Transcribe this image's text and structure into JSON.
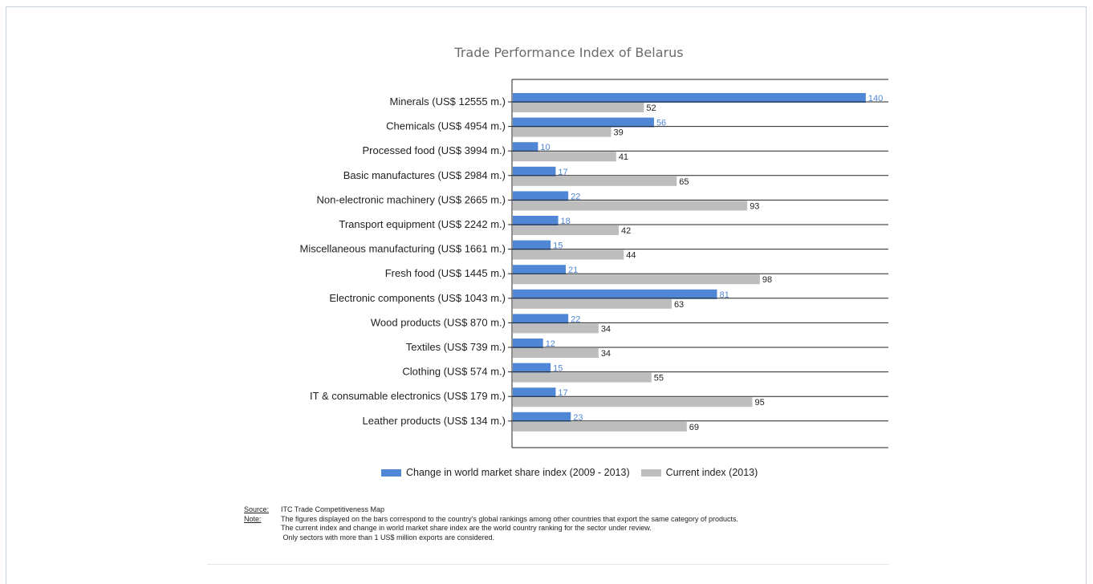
{
  "chart_data": {
    "type": "bar",
    "orientation": "horizontal",
    "title": "Trade Performance Index of Belarus",
    "categories": [
      "Minerals (US$ 12555 m.)",
      "Chemicals (US$ 4954 m.)",
      "Processed food (US$ 3994 m.)",
      "Basic manufactures (US$ 2984 m.)",
      "Non-electronic machinery (US$ 2665 m.)",
      "Transport equipment (US$ 2242 m.)",
      "Miscellaneous manufacturing (US$ 1661 m.)",
      "Fresh food (US$ 1445 m.)",
      "Electronic components (US$ 1043 m.)",
      "Wood products (US$ 870 m.)",
      "Textiles (US$ 739 m.)",
      "Clothing (US$ 574 m.)",
      "IT & consumable electronics (US$ 179 m.)",
      "Leather products (US$ 134 m.)"
    ],
    "series": [
      {
        "name": "Change in world market share index (2009 - 2013)",
        "color": "#4f86d6",
        "label_color": "#4f86d6",
        "values": [
          140,
          56,
          10,
          17,
          22,
          18,
          15,
          21,
          81,
          22,
          12,
          15,
          17,
          23
        ]
      },
      {
        "name": "Current index (2013)",
        "color": "#bdbdbd",
        "label_color": "#222222",
        "values": [
          52,
          39,
          41,
          65,
          93,
          42,
          44,
          98,
          63,
          34,
          34,
          55,
          95,
          69
        ]
      }
    ],
    "xlim": [
      0,
      148
    ],
    "grid": true,
    "legend_position": "bottom"
  },
  "notes": {
    "source_label": "Source:",
    "source_text": "ITC Trade Competitiveness Map",
    "note_label": "Note:",
    "note_lines": [
      "The figures displayed on the bars correspond to the country's global rankings among other countries that export the same category of products.",
      "The current index and change in world market share index are the world country ranking for the sector under review.",
      " Only sectors with more than 1 US$ million exports are considered."
    ]
  }
}
